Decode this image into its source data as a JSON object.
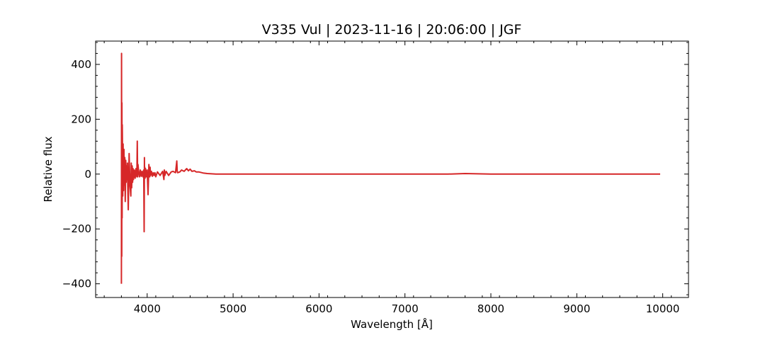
{
  "chart_data": {
    "type": "line",
    "title": "V335 Vul | 2023-11-16 | 20:06:00 | JGF",
    "xlabel": "Wavelength [Å]",
    "ylabel": "Relative flux",
    "xlim": [
      3400,
      10300
    ],
    "ylim": [
      -450,
      485
    ],
    "xticks": [
      4000,
      5000,
      6000,
      7000,
      8000,
      9000,
      10000
    ],
    "xtick_labels": [
      "4000",
      "5000",
      "6000",
      "7000",
      "8000",
      "9000",
      "10000"
    ],
    "yticks": [
      -400,
      -200,
      0,
      200,
      400
    ],
    "ytick_labels": [
      "−400",
      "−200",
      "0",
      "200",
      "400"
    ],
    "grid": false,
    "series": [
      {
        "color": "#d62728",
        "x": [
          3700,
          3702,
          3704,
          3706,
          3708,
          3710,
          3712,
          3716,
          3720,
          3725,
          3730,
          3735,
          3740,
          3745,
          3750,
          3755,
          3760,
          3765,
          3770,
          3775,
          3780,
          3790,
          3800,
          3810,
          3815,
          3820,
          3825,
          3830,
          3835,
          3840,
          3850,
          3860,
          3870,
          3880,
          3885,
          3889,
          3893,
          3900,
          3910,
          3920,
          3930,
          3940,
          3950,
          3960,
          3965,
          3968,
          3970,
          3972,
          3975,
          3980,
          3990,
          4000,
          4010,
          4020,
          4030,
          4034,
          4040,
          4050,
          4060,
          4070,
          4080,
          4090,
          4100,
          4120,
          4150,
          4180,
          4195,
          4200,
          4205,
          4220,
          4250,
          4280,
          4300,
          4330,
          4345,
          4350,
          4355,
          4380,
          4400,
          4430,
          4460,
          4480,
          4500,
          4520,
          4550,
          4570,
          4600,
          4650,
          4700,
          4750,
          4800,
          4900,
          5000,
          5200,
          5500,
          6000,
          6500,
          7000,
          7500,
          7700,
          8000,
          8500,
          9000,
          9500,
          9970
        ],
        "values": [
          -400,
          440,
          -300,
          260,
          -160,
          180,
          130,
          -80,
          110,
          -60,
          90,
          -40,
          60,
          -100,
          50,
          -30,
          30,
          -20,
          40,
          -60,
          -130,
          75,
          -40,
          -80,
          40,
          -50,
          30,
          -30,
          20,
          -20,
          15,
          -15,
          20,
          -10,
          120,
          -10,
          35,
          10,
          -10,
          15,
          -8,
          10,
          -10,
          15,
          -210,
          60,
          -5,
          25,
          -15,
          20,
          -10,
          15,
          -75,
          35,
          -10,
          25,
          -5,
          10,
          -8,
          5,
          -5,
          5,
          -10,
          8,
          -5,
          10,
          -20,
          15,
          -5,
          10,
          -5,
          8,
          10,
          5,
          48,
          10,
          5,
          8,
          15,
          10,
          20,
          12,
          18,
          10,
          12,
          8,
          8,
          4,
          2,
          1,
          0,
          0,
          0,
          0,
          0,
          0,
          0,
          0,
          0,
          2,
          0,
          0,
          0,
          0,
          0
        ]
      }
    ]
  }
}
